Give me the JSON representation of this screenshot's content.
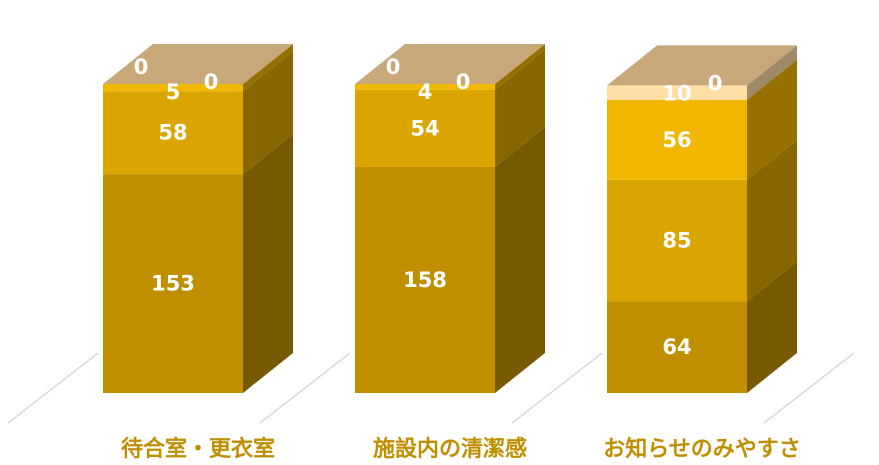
{
  "chart_data": {
    "type": "bar",
    "stacked": true,
    "three_d": true,
    "categories": [
      "待合室・更衣室",
      "施設内の清潔感",
      "お知らせのみやすさ"
    ],
    "series": [
      {
        "values": [
          153,
          158,
          64
        ],
        "color": "#bf8f00"
      },
      {
        "values": [
          58,
          54,
          85
        ],
        "color": "#dba500"
      },
      {
        "values": [
          5,
          4,
          56
        ],
        "color": "#f2b700"
      },
      {
        "values": [
          0,
          0,
          10
        ],
        "color": "#ffdfa6"
      },
      {
        "values": [
          0,
          0,
          0
        ],
        "color": "#a0856a"
      }
    ],
    "ylim": [
      0,
      216
    ],
    "grid": false,
    "legend": "none",
    "colors": {
      "top_face": "#c8a878",
      "category_text": "#bf8f00",
      "value_text": "#ffffff",
      "floor_lines": "#d9d9d9"
    }
  }
}
